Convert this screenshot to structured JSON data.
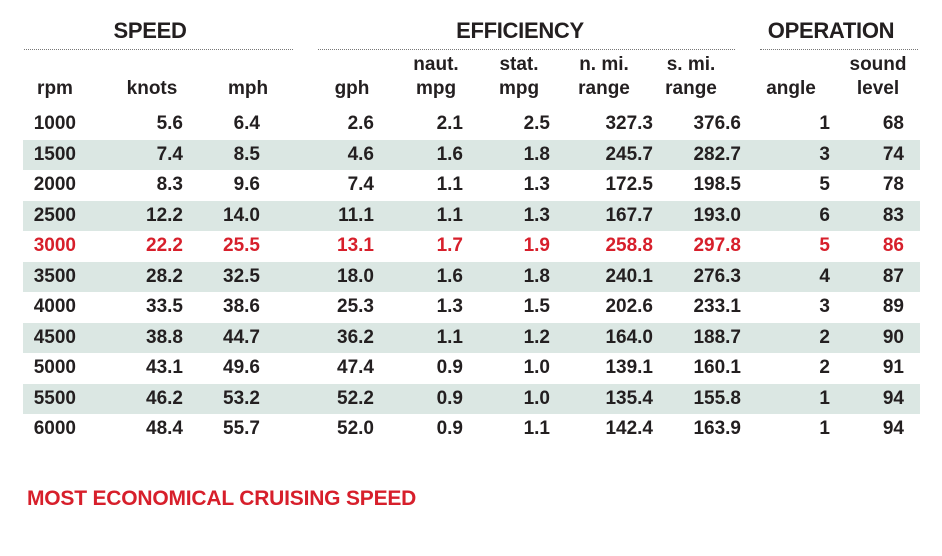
{
  "groups": {
    "speed": "SPEED",
    "efficiency": "EFFICIENCY",
    "operation": "OPERATION"
  },
  "columns": [
    {
      "key": "rpm",
      "line1": "",
      "line2": "rpm"
    },
    {
      "key": "knots",
      "line1": "",
      "line2": "knots"
    },
    {
      "key": "mph",
      "line1": "",
      "line2": "mph"
    },
    {
      "key": "gph",
      "line1": "",
      "line2": "gph"
    },
    {
      "key": "naut_mpg",
      "line1": "naut.",
      "line2": "mpg"
    },
    {
      "key": "stat_mpg",
      "line1": "stat.",
      "line2": "mpg"
    },
    {
      "key": "n_mi_range",
      "line1": "n. mi.",
      "line2": "range"
    },
    {
      "key": "s_mi_range",
      "line1": "s. mi.",
      "line2": "range"
    },
    {
      "key": "angle",
      "line1": "",
      "line2": "angle"
    },
    {
      "key": "sound_level",
      "line1": "sound",
      "line2": "level"
    }
  ],
  "rows": [
    [
      "1000",
      "5.6",
      "6.4",
      "2.6",
      "2.1",
      "2.5",
      "327.3",
      "376.6",
      "1",
      "68"
    ],
    [
      "1500",
      "7.4",
      "8.5",
      "4.6",
      "1.6",
      "1.8",
      "245.7",
      "282.7",
      "3",
      "74"
    ],
    [
      "2000",
      "8.3",
      "9.6",
      "7.4",
      "1.1",
      "1.3",
      "172.5",
      "198.5",
      "5",
      "78"
    ],
    [
      "2500",
      "12.2",
      "14.0",
      "11.1",
      "1.1",
      "1.3",
      "167.7",
      "193.0",
      "6",
      "83"
    ],
    [
      "3000",
      "22.2",
      "25.5",
      "13.1",
      "1.7",
      "1.9",
      "258.8",
      "297.8",
      "5",
      "86"
    ],
    [
      "3500",
      "28.2",
      "32.5",
      "18.0",
      "1.6",
      "1.8",
      "240.1",
      "276.3",
      "4",
      "87"
    ],
    [
      "4000",
      "33.5",
      "38.6",
      "25.3",
      "1.3",
      "1.5",
      "202.6",
      "233.1",
      "3",
      "89"
    ],
    [
      "4500",
      "38.8",
      "44.7",
      "36.2",
      "1.1",
      "1.2",
      "164.0",
      "188.7",
      "2",
      "90"
    ],
    [
      "5000",
      "43.1",
      "49.6",
      "47.4",
      "0.9",
      "1.0",
      "139.1",
      "160.1",
      "2",
      "91"
    ],
    [
      "5500",
      "46.2",
      "53.2",
      "52.2",
      "0.9",
      "1.0",
      "135.4",
      "155.8",
      "1",
      "94"
    ],
    [
      "6000",
      "48.4",
      "55.7",
      "52.0",
      "0.9",
      "1.1",
      "142.4",
      "163.9",
      "1",
      "94"
    ]
  ],
  "highlight_row_index": 4,
  "footnote": "MOST ECONOMICAL CRUISING SPEED",
  "colors": {
    "highlight": "#d71f2b",
    "stripe": "#dbe7e3",
    "text": "#231f20"
  }
}
